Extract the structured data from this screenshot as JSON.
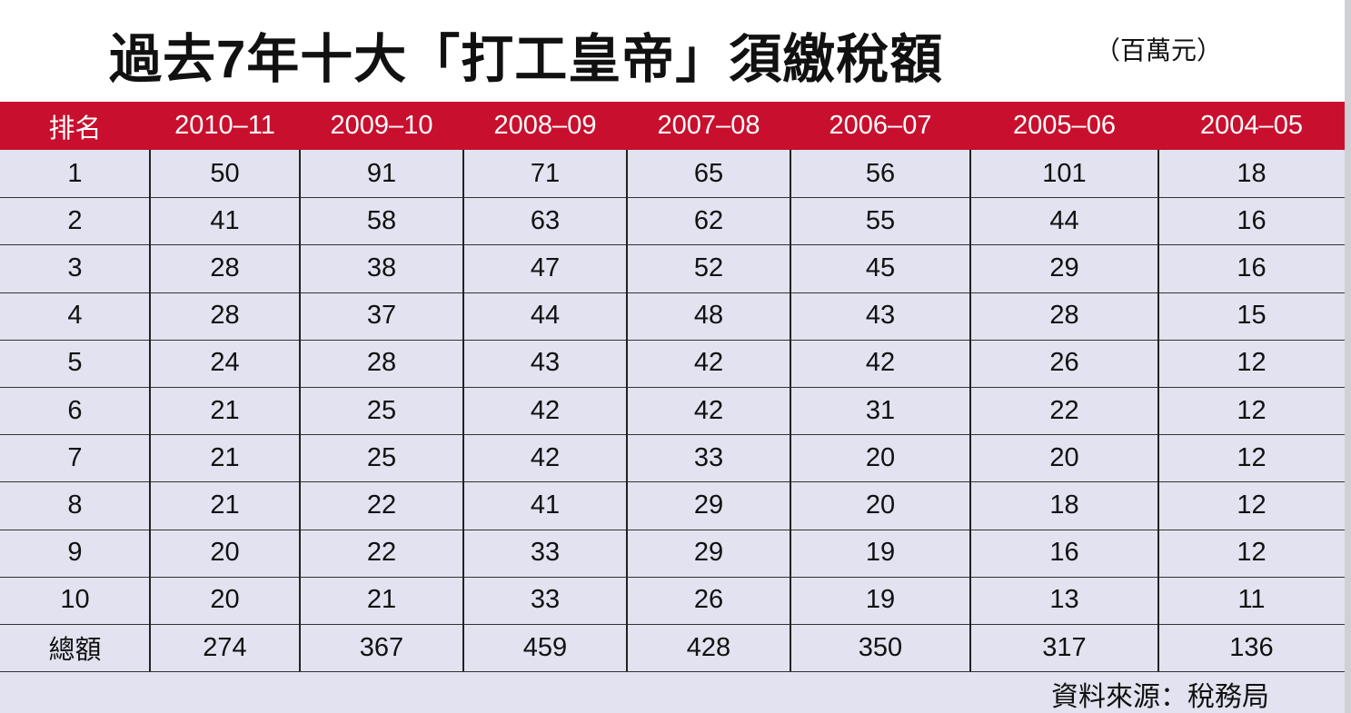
{
  "header": {
    "title": "過去7年十大「打工皇帝」須繳稅額",
    "unit": "（百萬元）"
  },
  "table": {
    "columns": [
      "排名",
      "2010–11",
      "2009–10",
      "2008–09",
      "2007–08",
      "2006–07",
      "2005–06",
      "2004–05"
    ],
    "rows": [
      [
        1,
        50,
        91,
        71,
        65,
        56,
        101,
        18
      ],
      [
        2,
        41,
        58,
        63,
        62,
        55,
        44,
        16
      ],
      [
        3,
        28,
        38,
        47,
        52,
        45,
        29,
        16
      ],
      [
        4,
        28,
        37,
        44,
        48,
        43,
        28,
        15
      ],
      [
        5,
        24,
        28,
        43,
        42,
        42,
        26,
        12
      ],
      [
        6,
        21,
        25,
        42,
        42,
        31,
        22,
        12
      ],
      [
        7,
        21,
        25,
        42,
        33,
        20,
        20,
        12
      ],
      [
        8,
        21,
        22,
        41,
        29,
        20,
        18,
        12
      ],
      [
        9,
        20,
        22,
        33,
        29,
        19,
        16,
        12
      ],
      [
        10,
        20,
        21,
        33,
        26,
        19,
        13,
        11
      ],
      [
        "總額",
        274,
        367,
        459,
        428,
        350,
        317,
        136
      ]
    ]
  },
  "footer": {
    "source": "資料來源：稅務局"
  }
}
